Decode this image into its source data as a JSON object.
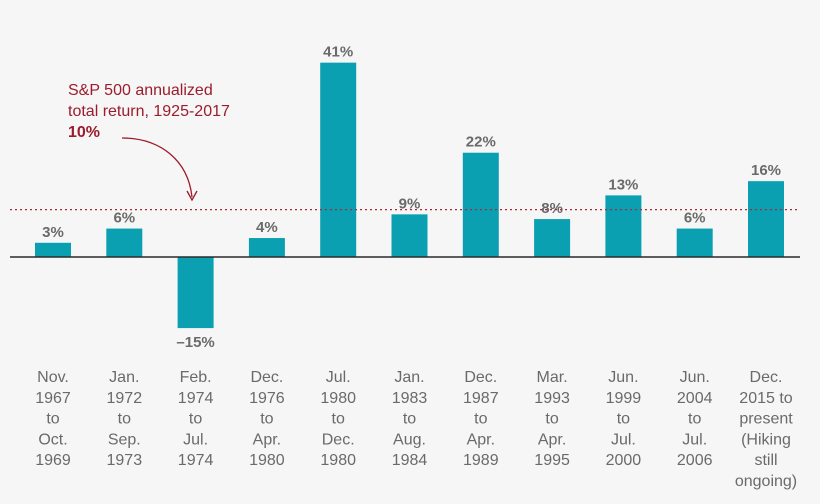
{
  "colors": {
    "bar": "#0aa0b2",
    "baseline": "#2a2a2a",
    "reference_line": "#a52a3a",
    "annotation": "#9b1c2c",
    "text": "#6a6a6a",
    "background": "#f6f6f6"
  },
  "annotation": {
    "line1": "S&P 500 annualized",
    "line2": "total return, 1925-2017",
    "value_label": "10%",
    "value": 10
  },
  "chart_data": {
    "type": "bar",
    "title": "",
    "xlabel": "",
    "ylabel": "",
    "ylim": [
      -20,
      45
    ],
    "grid": false,
    "reference_line": 10,
    "categories": [
      [
        "Nov.",
        "1967",
        "to",
        "Oct.",
        "1969"
      ],
      [
        "Jan.",
        "1972",
        "to",
        "Sep.",
        "1973"
      ],
      [
        "Feb.",
        "1974",
        "to",
        "Jul.",
        "1974"
      ],
      [
        "Dec.",
        "1976",
        "to",
        "Apr.",
        "1980"
      ],
      [
        "Jul.",
        "1980",
        "to",
        "Dec.",
        "1980"
      ],
      [
        "Jan.",
        "1983",
        "to",
        "Aug.",
        "1984"
      ],
      [
        "Dec.",
        "1987",
        "to",
        "Apr.",
        "1989"
      ],
      [
        "Mar.",
        "1993",
        "to",
        "Apr.",
        "1995"
      ],
      [
        "Jun.",
        "1999",
        "to",
        "Jul.",
        "2000"
      ],
      [
        "Jun.",
        "2004",
        "to",
        "Jul.",
        "2006"
      ],
      [
        "Dec.",
        "2015 to",
        "present",
        "(Hiking",
        "still",
        "ongoing)"
      ]
    ],
    "values": [
      3,
      6,
      -15,
      4,
      41,
      9,
      22,
      8,
      13,
      6,
      16
    ],
    "value_labels": [
      "3%",
      "6%",
      "–15%",
      "4%",
      "41%",
      "9%",
      "22%",
      "8%",
      "13%",
      "6%",
      "16%"
    ]
  }
}
